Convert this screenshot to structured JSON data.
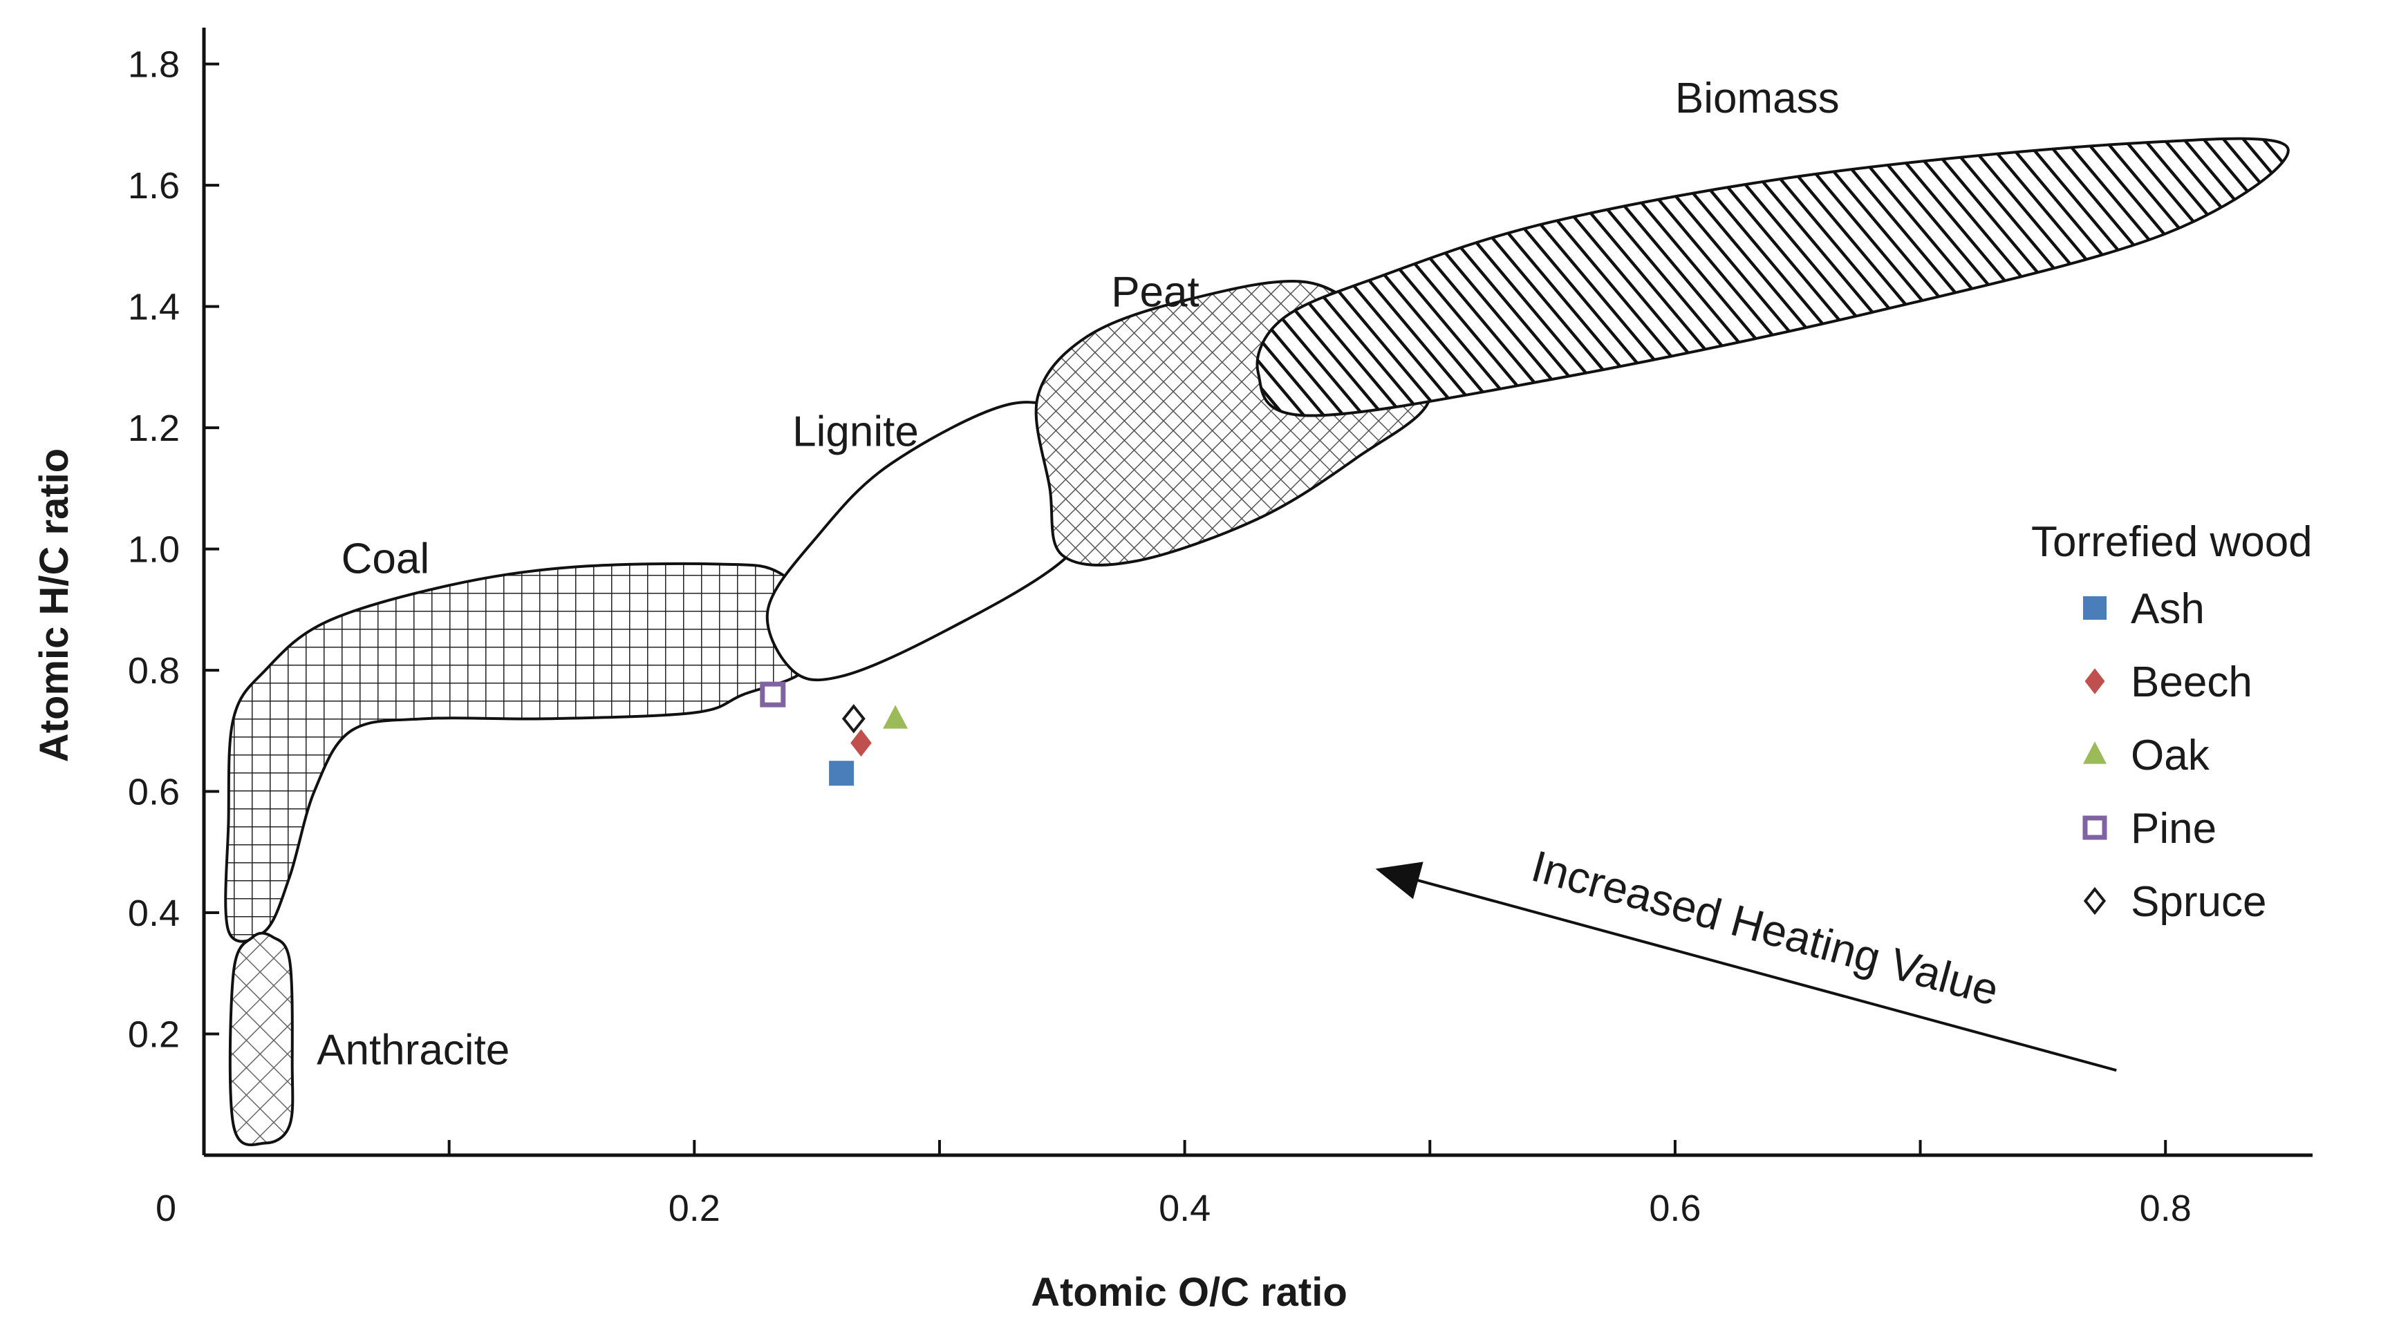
{
  "chart_data": {
    "type": "scatter",
    "title": "",
    "xlabel": "Atomic O/C ratio",
    "ylabel": "Atomic H/C ratio",
    "xlim": [
      0,
      0.86
    ],
    "ylim": [
      0,
      1.86
    ],
    "x_ticks": [
      {
        "value": 0,
        "label": "0"
      },
      {
        "value": 0.2,
        "label": "0.2"
      },
      {
        "value": 0.4,
        "label": "0.4"
      },
      {
        "value": 0.6,
        "label": "0.6"
      },
      {
        "value": 0.8,
        "label": "0.8"
      }
    ],
    "x_minor_ticks": [
      0.1,
      0.3,
      0.5,
      0.7
    ],
    "y_ticks": [
      {
        "value": 0.2,
        "label": "0.2"
      },
      {
        "value": 0.4,
        "label": "0.4"
      },
      {
        "value": 0.6,
        "label": "0.6"
      },
      {
        "value": 0.8,
        "label": "0.8"
      },
      {
        "value": 1.0,
        "label": "1.0"
      },
      {
        "value": 1.2,
        "label": "1.2"
      },
      {
        "value": 1.4,
        "label": "1.4"
      },
      {
        "value": 1.6,
        "label": "1.6"
      },
      {
        "value": 1.8,
        "label": "1.8"
      }
    ],
    "regions": [
      {
        "name": "Biomass",
        "pattern": "diagonal-hatch",
        "center": [
          0.62,
          1.4
        ],
        "label_at": [
          0.6,
          1.72
        ],
        "points": [
          [
            0.43,
            1.29
          ],
          [
            0.44,
            1.38
          ],
          [
            0.48,
            1.45
          ],
          [
            0.55,
            1.54
          ],
          [
            0.66,
            1.62
          ],
          [
            0.79,
            1.67
          ],
          [
            0.85,
            1.66
          ],
          [
            0.8,
            1.52
          ],
          [
            0.68,
            1.39
          ],
          [
            0.55,
            1.28
          ],
          [
            0.45,
            1.22
          ]
        ]
      },
      {
        "name": "Peat",
        "pattern": "cross-hatch",
        "center": [
          0.39,
          1.2
        ],
        "label_at": [
          0.37,
          1.4
        ],
        "points": [
          [
            0.34,
            1.25
          ],
          [
            0.36,
            1.35
          ],
          [
            0.4,
            1.41
          ],
          [
            0.45,
            1.44
          ],
          [
            0.48,
            1.36
          ],
          [
            0.5,
            1.25
          ],
          [
            0.47,
            1.15
          ],
          [
            0.43,
            1.05
          ],
          [
            0.38,
            0.98
          ],
          [
            0.35,
            0.99
          ],
          [
            0.345,
            1.1
          ]
        ]
      },
      {
        "name": "Lignite",
        "pattern": "none",
        "center": [
          0.285,
          1.02
        ],
        "label_at": [
          0.24,
          1.17
        ],
        "points": [
          [
            0.23,
            0.9
          ],
          [
            0.25,
            1.02
          ],
          [
            0.28,
            1.14
          ],
          [
            0.33,
            1.24
          ],
          [
            0.36,
            1.2
          ],
          [
            0.37,
            1.1
          ],
          [
            0.35,
            0.98
          ],
          [
            0.3,
            0.86
          ],
          [
            0.26,
            0.79
          ],
          [
            0.24,
            0.8
          ]
        ]
      },
      {
        "name": "Coal",
        "pattern": "grid",
        "center": [
          0.12,
          0.8
        ],
        "label_at": [
          0.056,
          0.96
        ],
        "points": [
          [
            0.01,
            0.37
          ],
          [
            0.01,
            0.55
          ],
          [
            0.012,
            0.72
          ],
          [
            0.025,
            0.8
          ],
          [
            0.05,
            0.88
          ],
          [
            0.1,
            0.94
          ],
          [
            0.15,
            0.97
          ],
          [
            0.21,
            0.975
          ],
          [
            0.235,
            0.96
          ],
          [
            0.25,
            0.88
          ],
          [
            0.245,
            0.8
          ],
          [
            0.22,
            0.76
          ],
          [
            0.2,
            0.73
          ],
          [
            0.14,
            0.72
          ],
          [
            0.09,
            0.72
          ],
          [
            0.06,
            0.7
          ],
          [
            0.045,
            0.6
          ],
          [
            0.035,
            0.46
          ],
          [
            0.025,
            0.37
          ]
        ]
      },
      {
        "name": "Anthracite",
        "pattern": "diamond-hatch",
        "center": [
          0.02,
          0.18
        ],
        "label_at": [
          0.046,
          0.15
        ],
        "points": [
          [
            0.012,
            0.05
          ],
          [
            0.012,
            0.3
          ],
          [
            0.02,
            0.36
          ],
          [
            0.028,
            0.36
          ],
          [
            0.035,
            0.32
          ],
          [
            0.036,
            0.15
          ],
          [
            0.035,
            0.05
          ],
          [
            0.025,
            0.02
          ]
        ]
      }
    ],
    "series_title": "Torrefied wood",
    "series": [
      {
        "name": "Ash",
        "marker": "square-filled",
        "color": "#4a7ebb",
        "x": 0.26,
        "y": 0.63
      },
      {
        "name": "Beech",
        "marker": "diamond-filled",
        "color": "#c0504d",
        "x": 0.268,
        "y": 0.68
      },
      {
        "name": "Oak",
        "marker": "triangle-filled",
        "color": "#9bbb59",
        "x": 0.282,
        "y": 0.72
      },
      {
        "name": "Pine",
        "marker": "square-open",
        "color": "#8064a2",
        "x": 0.232,
        "y": 0.76
      },
      {
        "name": "Spruce",
        "marker": "diamond-open",
        "color": "#1a1a1a",
        "x": 0.265,
        "y": 0.72
      }
    ],
    "legend_position": "right",
    "annotation": {
      "text": "Increased Heating Value",
      "from": [
        0.78,
        0.14
      ],
      "to": [
        0.48,
        0.47
      ]
    }
  }
}
